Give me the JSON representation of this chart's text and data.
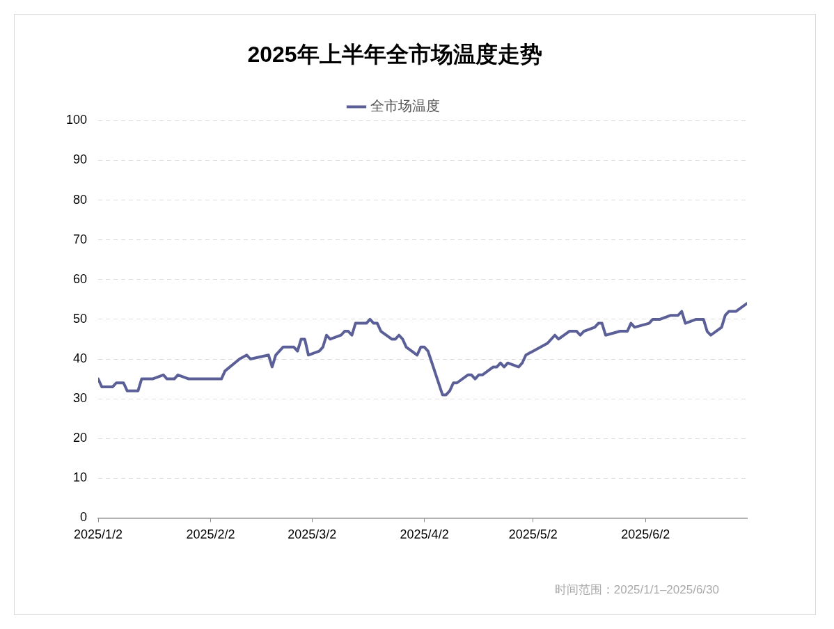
{
  "chart_data": {
    "type": "line",
    "title": "2025年上半年全市场温度走势",
    "annotations": [
      "时间范围：2025/1/1–2025/6/30"
    ],
    "x": [
      "2025-01-02",
      "2025-01-03",
      "2025-01-06",
      "2025-01-07",
      "2025-01-09",
      "2025-01-10",
      "2025-01-13",
      "2025-01-14",
      "2025-01-17",
      "2025-01-20",
      "2025-01-21",
      "2025-01-23",
      "2025-01-24",
      "2025-01-27",
      "2025-02-05",
      "2025-02-06",
      "2025-02-10",
      "2025-02-12",
      "2025-02-13",
      "2025-02-18",
      "2025-02-19",
      "2025-02-20",
      "2025-02-22",
      "2025-02-25",
      "2025-02-26",
      "2025-02-27",
      "2025-02-28",
      "2025-03-01",
      "2025-03-04",
      "2025-03-05",
      "2025-03-06",
      "2025-03-07",
      "2025-03-10",
      "2025-03-11",
      "2025-03-12",
      "2025-03-13",
      "2025-03-14",
      "2025-03-17",
      "2025-03-18",
      "2025-03-19",
      "2025-03-20",
      "2025-03-21",
      "2025-03-24",
      "2025-03-25",
      "2025-03-26",
      "2025-03-27",
      "2025-03-28",
      "2025-03-31",
      "2025-04-01",
      "2025-04-02",
      "2025-04-03",
      "2025-04-07",
      "2025-04-08",
      "2025-04-09",
      "2025-04-10",
      "2025-04-11",
      "2025-04-14",
      "2025-04-15",
      "2025-04-16",
      "2025-04-17",
      "2025-04-18",
      "2025-04-21",
      "2025-04-22",
      "2025-04-23",
      "2025-04-24",
      "2025-04-25",
      "2025-04-28",
      "2025-04-29",
      "2025-04-30",
      "2025-05-06",
      "2025-05-08",
      "2025-05-09",
      "2025-05-12",
      "2025-05-14",
      "2025-05-15",
      "2025-05-16",
      "2025-05-19",
      "2025-05-20",
      "2025-05-21",
      "2025-05-22",
      "2025-05-26",
      "2025-05-28",
      "2025-05-29",
      "2025-05-30",
      "2025-06-03",
      "2025-06-04",
      "2025-06-06",
      "2025-06-09",
      "2025-06-11",
      "2025-06-12",
      "2025-06-13",
      "2025-06-16",
      "2025-06-18",
      "2025-06-19",
      "2025-06-20",
      "2025-06-23",
      "2025-06-24",
      "2025-06-25",
      "2025-06-27",
      "2025-06-30"
    ],
    "series": [
      {
        "name": "全市场温度",
        "color": "#5b5f97",
        "values": [
          35,
          33,
          33,
          34,
          34,
          32,
          32,
          35,
          35,
          36,
          35,
          35,
          36,
          35,
          35,
          37,
          40,
          41,
          40,
          41,
          38,
          41,
          43,
          43,
          42,
          45,
          45,
          41,
          42,
          43,
          46,
          45,
          46,
          47,
          47,
          46,
          49,
          49,
          50,
          49,
          49,
          47,
          45,
          45,
          46,
          45,
          43,
          41,
          43,
          43,
          42,
          31,
          31,
          32,
          34,
          34,
          36,
          36,
          35,
          36,
          36,
          38,
          38,
          39,
          38,
          39,
          38,
          39,
          41,
          44,
          46,
          45,
          47,
          47,
          46,
          47,
          48,
          49,
          49,
          46,
          47,
          47,
          49,
          48,
          49,
          50,
          50,
          51,
          51,
          52,
          49,
          50,
          50,
          47,
          46,
          48,
          51,
          52,
          52,
          54
        ]
      }
    ],
    "xlim": [
      "2025-01-02",
      "2025-06-30"
    ],
    "xticks": [
      {
        "value": "2025-01-02",
        "label": "2025/1/2"
      },
      {
        "value": "2025-02-02",
        "label": "2025/2/2"
      },
      {
        "value": "2025-03-02",
        "label": "2025/3/2"
      },
      {
        "value": "2025-04-02",
        "label": "2025/4/2"
      },
      {
        "value": "2025-05-02",
        "label": "2025/5/2"
      },
      {
        "value": "2025-06-02",
        "label": "2025/6/2"
      }
    ],
    "ylim": [
      0,
      100
    ],
    "yticks": [
      0,
      10,
      20,
      30,
      40,
      50,
      60,
      70,
      80,
      90,
      100
    ],
    "grid": "y",
    "legend": "top",
    "marker": "none",
    "line_style": "solid"
  }
}
